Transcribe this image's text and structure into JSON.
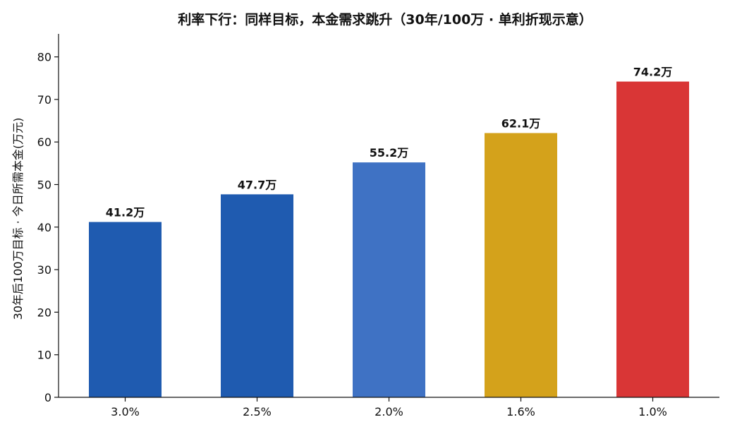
{
  "chart_data": {
    "type": "bar",
    "title": "利率下行：同样目标，本金需求跳升（30年/100万 · 单利折现示意）",
    "xlabel": "",
    "ylabel": "30年后100万目标 · 今日所需本金(万元)",
    "categories": [
      "3.0%",
      "2.5%",
      "2.0%",
      "1.6%",
      "1.0%"
    ],
    "values": [
      41.2,
      47.7,
      55.2,
      62.1,
      74.2
    ],
    "data_labels": [
      "41.2万",
      "47.7万",
      "55.2万",
      "62.1万",
      "74.2万"
    ],
    "colors": [
      "#1f5bb0",
      "#1f5bb0",
      "#3f72c4",
      "#d4a21b",
      "#d93636"
    ],
    "ylim": [
      0,
      85
    ],
    "yticks": [
      0,
      10,
      20,
      30,
      40,
      50,
      60,
      70,
      80
    ],
    "grid": false,
    "legend": "none"
  }
}
